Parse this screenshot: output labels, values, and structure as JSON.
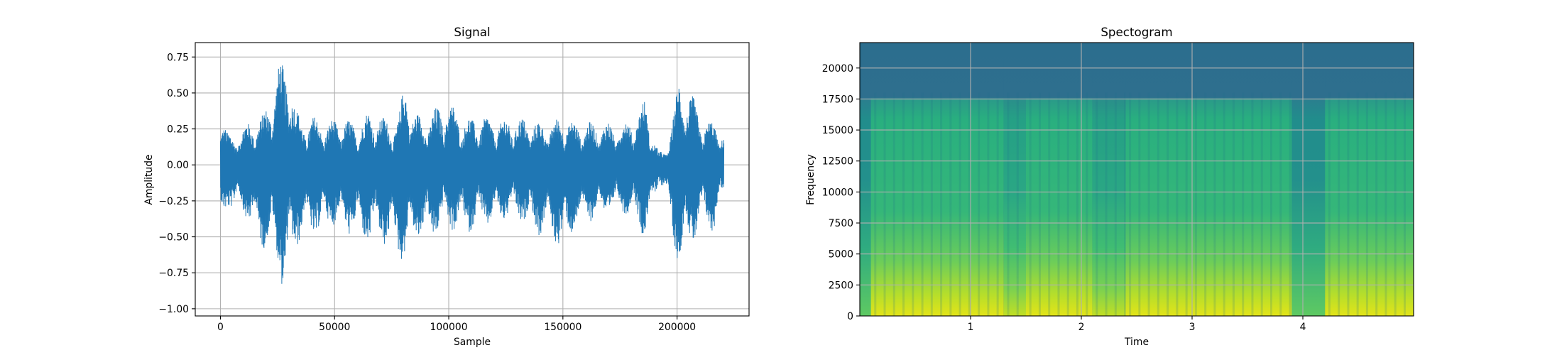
{
  "chart_data": [
    {
      "type": "line",
      "title": "Signal",
      "xlabel": "Sample",
      "ylabel": "Amplitude",
      "xlim": [
        -11025,
        231525
      ],
      "ylim": [
        -1.05,
        0.85
      ],
      "grid": true,
      "x_ticks": [
        0,
        50000,
        100000,
        150000,
        200000
      ],
      "x_tick_labels": [
        "0",
        "50000",
        "100000",
        "150000",
        "200000"
      ],
      "y_ticks": [
        -1.0,
        -0.75,
        -0.5,
        -0.25,
        0.0,
        0.25,
        0.5,
        0.75
      ],
      "y_tick_labels": [
        "−1.00",
        "−0.75",
        "−0.50",
        "−0.25",
        "0.00",
        "0.25",
        "0.50",
        "0.75"
      ],
      "color": "#1f77b4",
      "num_samples": 220500,
      "envelope": {
        "x": [
          0,
          3000,
          6000,
          9000,
          12000,
          15000,
          18000,
          21000,
          24000,
          26000,
          28000,
          30000,
          33000,
          36000,
          40000,
          45000,
          50000,
          55000,
          60000,
          65000,
          70000,
          75000,
          78000,
          81000,
          84000,
          88000,
          92000,
          96000,
          100000,
          105000,
          110000,
          115000,
          120000,
          125000,
          130000,
          135000,
          140000,
          145000,
          150000,
          155000,
          160000,
          165000,
          170000,
          175000,
          180000,
          183000,
          186000,
          189000,
          192000,
          195000,
          198000,
          201000,
          204000,
          207000,
          210000,
          213000,
          216000,
          220000
        ],
        "upper": [
          0.43,
          0.23,
          0.2,
          0.26,
          0.3,
          0.32,
          0.34,
          0.45,
          0.62,
          0.74,
          0.7,
          0.75,
          0.4,
          0.3,
          0.35,
          0.3,
          0.32,
          0.33,
          0.28,
          0.38,
          0.35,
          0.3,
          0.33,
          0.63,
          0.4,
          0.33,
          0.36,
          0.43,
          0.45,
          0.35,
          0.33,
          0.35,
          0.32,
          0.33,
          0.33,
          0.33,
          0.3,
          0.3,
          0.35,
          0.3,
          0.3,
          0.3,
          0.3,
          0.28,
          0.34,
          0.36,
          0.48,
          0.23,
          0.09,
          0.1,
          0.33,
          0.62,
          0.55,
          0.48,
          0.34,
          0.32,
          0.3,
          0.25
        ],
        "lower": [
          -0.5,
          -0.29,
          -0.32,
          -0.3,
          -0.4,
          -0.5,
          -0.58,
          -0.58,
          -0.65,
          -0.76,
          -0.95,
          -0.72,
          -0.6,
          -0.48,
          -0.5,
          -0.47,
          -0.42,
          -0.48,
          -0.5,
          -0.55,
          -0.55,
          -0.58,
          -0.65,
          -0.68,
          -0.55,
          -0.5,
          -0.55,
          -0.45,
          -0.45,
          -0.48,
          -0.47,
          -0.42,
          -0.43,
          -0.38,
          -0.38,
          -0.45,
          -0.5,
          -0.5,
          -0.63,
          -0.45,
          -0.4,
          -0.38,
          -0.35,
          -0.32,
          -0.38,
          -0.42,
          -0.52,
          -0.33,
          -0.13,
          -0.18,
          -0.52,
          -0.72,
          -0.6,
          -0.55,
          -0.45,
          -0.42,
          -0.5,
          -0.22
        ]
      }
    },
    {
      "type": "heatmap",
      "title": "Spectogram",
      "xlabel": "Time",
      "ylabel": "Frequency",
      "xlim": [
        0,
        5.0
      ],
      "ylim": [
        0,
        22050
      ],
      "grid": true,
      "x_ticks": [
        1,
        2,
        3,
        4
      ],
      "x_tick_labels": [
        "1",
        "2",
        "3",
        "4"
      ],
      "y_ticks": [
        0,
        2500,
        5000,
        7500,
        10000,
        12500,
        15000,
        17500,
        20000
      ],
      "y_tick_labels": [
        "0",
        "2500",
        "5000",
        "7500",
        "10000",
        "12500",
        "15000",
        "17500",
        "20000"
      ],
      "colormap": [
        "#2b6f8e",
        "#21918c",
        "#35b779",
        "#90d743",
        "#fde725"
      ],
      "segments": [
        {
          "t_start": 0.0,
          "t_end": 0.1,
          "level": "low"
        },
        {
          "t_start": 0.1,
          "t_end": 1.3,
          "level": "high"
        },
        {
          "t_start": 1.3,
          "t_end": 1.5,
          "level": "mid"
        },
        {
          "t_start": 1.5,
          "t_end": 2.1,
          "level": "high"
        },
        {
          "t_start": 2.1,
          "t_end": 2.4,
          "level": "mid"
        },
        {
          "t_start": 2.4,
          "t_end": 3.9,
          "level": "high"
        },
        {
          "t_start": 3.9,
          "t_end": 4.2,
          "level": "low"
        },
        {
          "t_start": 4.2,
          "t_end": 5.0,
          "level": "high"
        }
      ]
    }
  ]
}
